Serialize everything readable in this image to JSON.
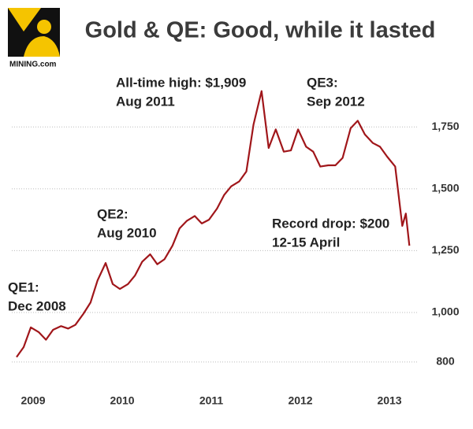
{
  "logo": "MINING.com",
  "chart_data": {
    "type": "line",
    "title": "Gold & QE: Good, while it lasted",
    "x": [
      2008.92,
      2009.0,
      2009.08,
      2009.17,
      2009.25,
      2009.33,
      2009.42,
      2009.5,
      2009.58,
      2009.67,
      2009.75,
      2009.83,
      2009.92,
      2010.0,
      2010.08,
      2010.17,
      2010.25,
      2010.33,
      2010.42,
      2010.5,
      2010.58,
      2010.67,
      2010.75,
      2010.83,
      2010.92,
      2011.0,
      2011.08,
      2011.17,
      2011.25,
      2011.33,
      2011.42,
      2011.5,
      2011.58,
      2011.67,
      2011.75,
      2011.83,
      2011.92,
      2012.0,
      2012.08,
      2012.17,
      2012.25,
      2012.33,
      2012.42,
      2012.5,
      2012.58,
      2012.67,
      2012.75,
      2012.83,
      2012.92,
      2013.0,
      2013.08,
      2013.17,
      2013.25,
      2013.29,
      2013.33
    ],
    "series": [
      {
        "name": "Gold",
        "color": "#a0161a",
        "values": [
          820,
          860,
          940,
          920,
          890,
          930,
          945,
          935,
          950,
          995,
          1040,
          1130,
          1200,
          1115,
          1095,
          1115,
          1150,
          1205,
          1235,
          1195,
          1215,
          1270,
          1340,
          1370,
          1390,
          1360,
          1375,
          1420,
          1475,
          1510,
          1530,
          1570,
          1760,
          1895,
          1665,
          1740,
          1650,
          1655,
          1740,
          1670,
          1650,
          1590,
          1595,
          1595,
          1625,
          1745,
          1775,
          1720,
          1685,
          1670,
          1630,
          1590,
          1350,
          1400,
          1270
        ]
      }
    ],
    "xlim": [
      2008.8,
      2013.5
    ],
    "xticks": [
      2009,
      2010,
      2011,
      2012,
      2013
    ],
    "ylim": [
      720,
      1945
    ],
    "yticks": [
      800,
      {
        "value": 1000,
        "label": "1,000"
      },
      {
        "value": 1250,
        "label": "1,250"
      },
      {
        "value": 1500,
        "label": "1,500"
      },
      {
        "value": 1750,
        "label": "1,750"
      }
    ],
    "grid": true,
    "annotations": [
      {
        "lines": [
          "All-time high: $1,909",
          "Aug 2011"
        ]
      },
      {
        "lines": [
          "QE3:",
          "Sep 2012"
        ]
      },
      {
        "lines": [
          "QE2:",
          "Aug 2010"
        ]
      },
      {
        "lines": [
          "QE1:",
          "Dec 2008"
        ]
      },
      {
        "lines": [
          "Record drop: $200",
          "12-15 April"
        ]
      }
    ]
  }
}
